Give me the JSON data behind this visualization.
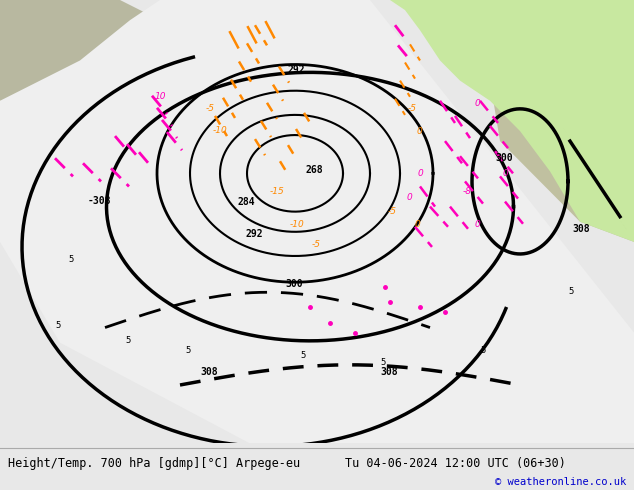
{
  "title_left": "Height/Temp. 700 hPa [gdmp][°C] Arpege-eu",
  "title_right": "Tu 04-06-2024 12:00 UTC (06+30)",
  "copyright": "© weatheronline.co.uk",
  "land_color": "#c8c8a8",
  "gray_land_color": "#b8b8a8",
  "white_area_color": "#f0f0f0",
  "light_gray_area": "#e0e0dc",
  "green_area_color": "#c8e8a0",
  "footer_bg": "#e8e8e8",
  "footer_text_color": "#000000",
  "copyright_color": "#0000cc",
  "contour_color": "#000000",
  "temp_warm_color": "#ff8800",
  "temp_cold_color": "#ff00bb",
  "red_color": "#dd2200"
}
